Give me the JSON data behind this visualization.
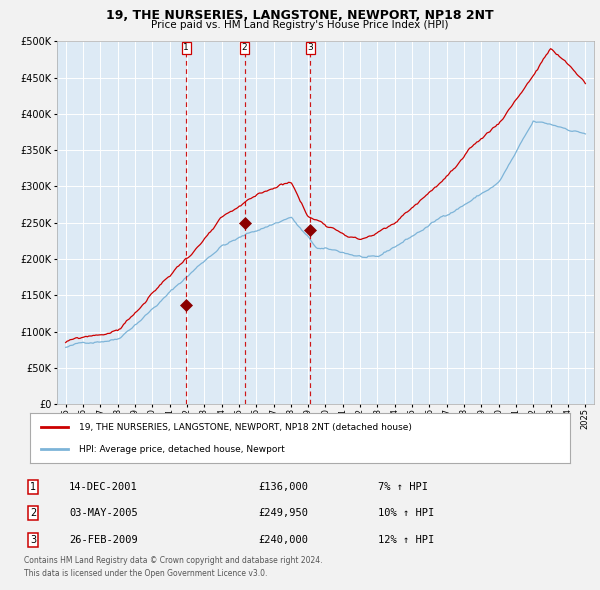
{
  "title": "19, THE NURSERIES, LANGSTONE, NEWPORT, NP18 2NT",
  "subtitle": "Price paid vs. HM Land Registry's House Price Index (HPI)",
  "legend_line1": "19, THE NURSERIES, LANGSTONE, NEWPORT, NP18 2NT (detached house)",
  "legend_line2": "HPI: Average price, detached house, Newport",
  "transactions": [
    {
      "num": 1,
      "date": "14-DEC-2001",
      "price": 136000,
      "hpi_pct": "7%",
      "date_x": 2001.96
    },
    {
      "num": 2,
      "date": "03-MAY-2005",
      "price": 249950,
      "hpi_pct": "10%",
      "date_x": 2005.33
    },
    {
      "num": 3,
      "date": "26-FEB-2009",
      "price": 240000,
      "hpi_pct": "12%",
      "date_x": 2009.12
    }
  ],
  "footnote1": "Contains HM Land Registry data © Crown copyright and database right 2024.",
  "footnote2": "This data is licensed under the Open Government Licence v3.0.",
  "hpi_color": "#7db4d8",
  "price_color": "#cc0000",
  "fig_bg_color": "#f2f2f2",
  "plot_bg_color": "#ddeaf5",
  "grid_color": "#ffffff",
  "vline_color": "#cc0000",
  "marker_color": "#8b0000",
  "ylim": [
    0,
    500000
  ],
  "xlim_start": 1994.5,
  "xlim_end": 2025.5,
  "yticks": [
    0,
    50000,
    100000,
    150000,
    200000,
    250000,
    300000,
    350000,
    400000,
    450000,
    500000
  ]
}
